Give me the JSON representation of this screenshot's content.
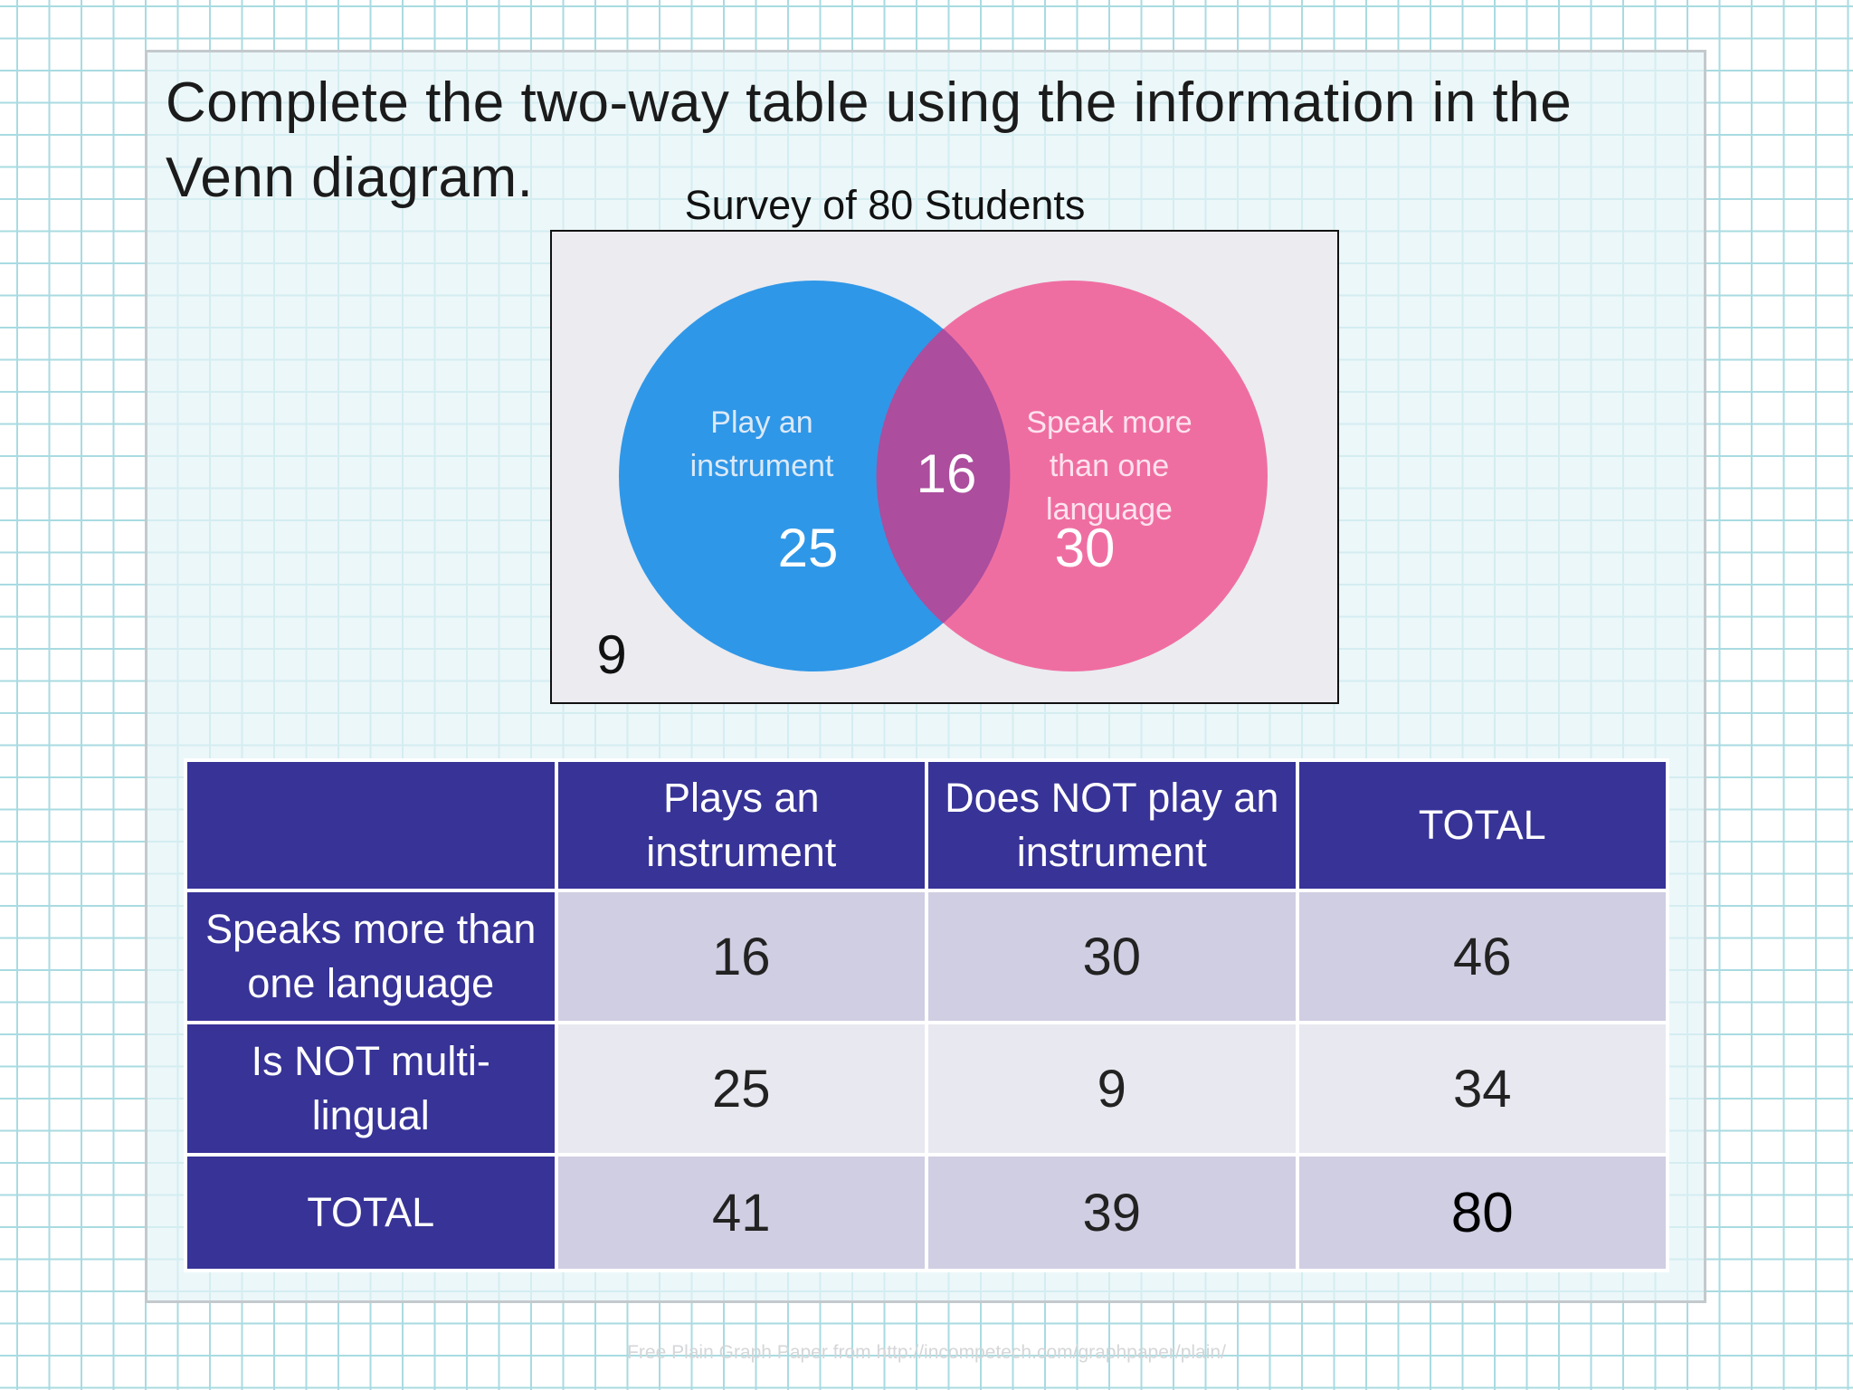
{
  "instruction": "Complete the two-way table using the information in the Venn diagram.",
  "venn": {
    "title": "Survey of 80 Students",
    "set_a": {
      "label_line1": "Play an",
      "label_line2": "instrument",
      "only_value": "25",
      "color": "#1e8fe6"
    },
    "set_b": {
      "label_line1": "Speak more",
      "label_line2": "than one",
      "label_line3": "language",
      "only_value": "30",
      "color": "#f06199"
    },
    "intersection_value": "16",
    "outside_value": "9",
    "background_color": "#ebebf0"
  },
  "table": {
    "header": {
      "corner": "",
      "col1": "Plays an instrument",
      "col2": "Does NOT play an instrument",
      "col3": "TOTAL"
    },
    "rows": [
      {
        "label": "Speaks more than one language",
        "c1": "16",
        "c2": "30",
        "c3": "46"
      },
      {
        "label": "Is NOT multi-lingual",
        "c1": "25",
        "c2": "9",
        "c3": "34"
      },
      {
        "label": "TOTAL",
        "c1": "41",
        "c2": "39",
        "c3": "80"
      }
    ],
    "header_color": "#373397",
    "shade_color_a": "#d0cee2",
    "shade_color_b": "#e8e8f0"
  },
  "footer": "Free Plain Graph Paper from http://incompetech.com/graphpaper/plain/"
}
